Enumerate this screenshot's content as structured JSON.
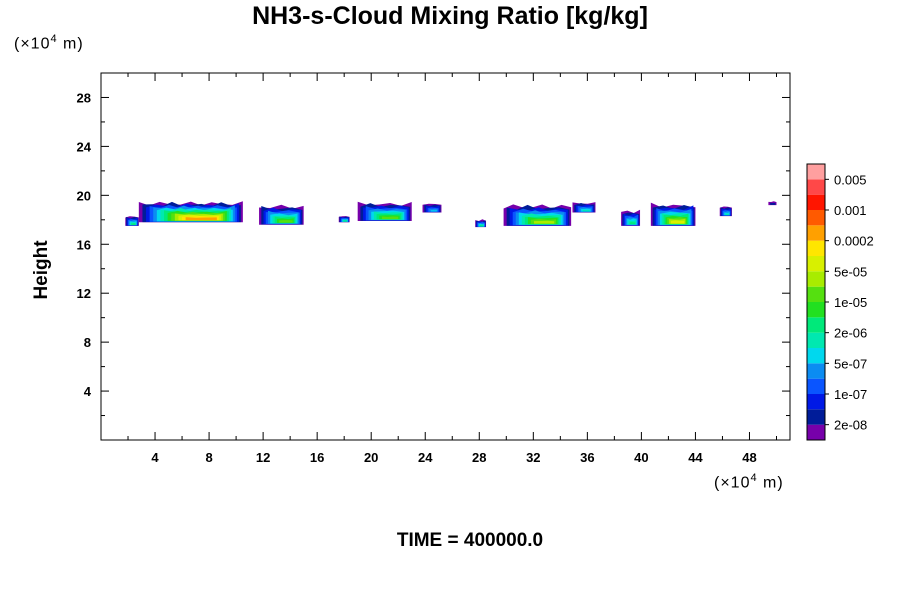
{
  "chart_data": {
    "type": "heatmap",
    "title": "NH3-s-Cloud Mixing Ratio [kg/kg]",
    "ylabel": "Height",
    "xlabel": "",
    "x_unit": {
      "prefix": "(×10",
      "exp": "4",
      "suffix": " m)"
    },
    "y_unit": {
      "prefix": "(×10",
      "exp": "4",
      "suffix": " m)"
    },
    "xlim": [
      0,
      51
    ],
    "ylim": [
      0,
      30
    ],
    "x_ticks": [
      4,
      8,
      12,
      16,
      20,
      24,
      28,
      32,
      36,
      40,
      44,
      48
    ],
    "y_ticks": [
      4,
      8,
      12,
      16,
      20,
      24,
      28
    ],
    "annotation": "TIME = 400000.0",
    "colorbar": {
      "colors": [
        "#7700aa",
        "#001c99",
        "#0019e6",
        "#0a55ff",
        "#0b8cf2",
        "#00d8ee",
        "#00e8b0",
        "#00e97a",
        "#22e020",
        "#55e010",
        "#a8ec00",
        "#d8f000",
        "#ffe600",
        "#ffa000",
        "#ff5a00",
        "#ff1500",
        "#ff4848",
        "#ff9f9f"
      ],
      "labels": [
        "2e-08",
        "1e-07",
        "5e-07",
        "2e-06",
        "1e-05",
        "5e-05",
        "0.0002",
        "0.001",
        "0.005"
      ]
    },
    "clouds": [
      {
        "x0": 2.8,
        "x1": 10.5,
        "ybase": 17.8,
        "ytop": 20.0,
        "peak": 13
      },
      {
        "x0": 1.8,
        "x1": 2.8,
        "ybase": 17.5,
        "ytop": 18.6,
        "peak": 7
      },
      {
        "x0": 11.7,
        "x1": 15.0,
        "ybase": 17.6,
        "ytop": 19.7,
        "peak": 9
      },
      {
        "x0": 17.6,
        "x1": 18.4,
        "ybase": 17.8,
        "ytop": 18.5,
        "peak": 7
      },
      {
        "x0": 19.0,
        "x1": 23.0,
        "ybase": 17.9,
        "ytop": 19.9,
        "peak": 9
      },
      {
        "x0": 23.8,
        "x1": 25.2,
        "ybase": 18.6,
        "ytop": 19.6,
        "peak": 5
      },
      {
        "x0": 27.7,
        "x1": 28.5,
        "ybase": 17.4,
        "ytop": 18.2,
        "peak": 7
      },
      {
        "x0": 29.8,
        "x1": 34.8,
        "ybase": 17.5,
        "ytop": 19.8,
        "peak": 10
      },
      {
        "x0": 34.9,
        "x1": 36.6,
        "ybase": 18.6,
        "ytop": 19.7,
        "peak": 6
      },
      {
        "x0": 38.5,
        "x1": 39.9,
        "ybase": 17.5,
        "ytop": 19.2,
        "peak": 7
      },
      {
        "x0": 40.7,
        "x1": 44.0,
        "ybase": 17.5,
        "ytop": 19.9,
        "peak": 11
      },
      {
        "x0": 45.8,
        "x1": 46.7,
        "ybase": 18.3,
        "ytop": 19.4,
        "peak": 6
      },
      {
        "x0": 49.4,
        "x1": 50.0,
        "ybase": 19.2,
        "ytop": 19.6,
        "peak": 2
      }
    ]
  }
}
